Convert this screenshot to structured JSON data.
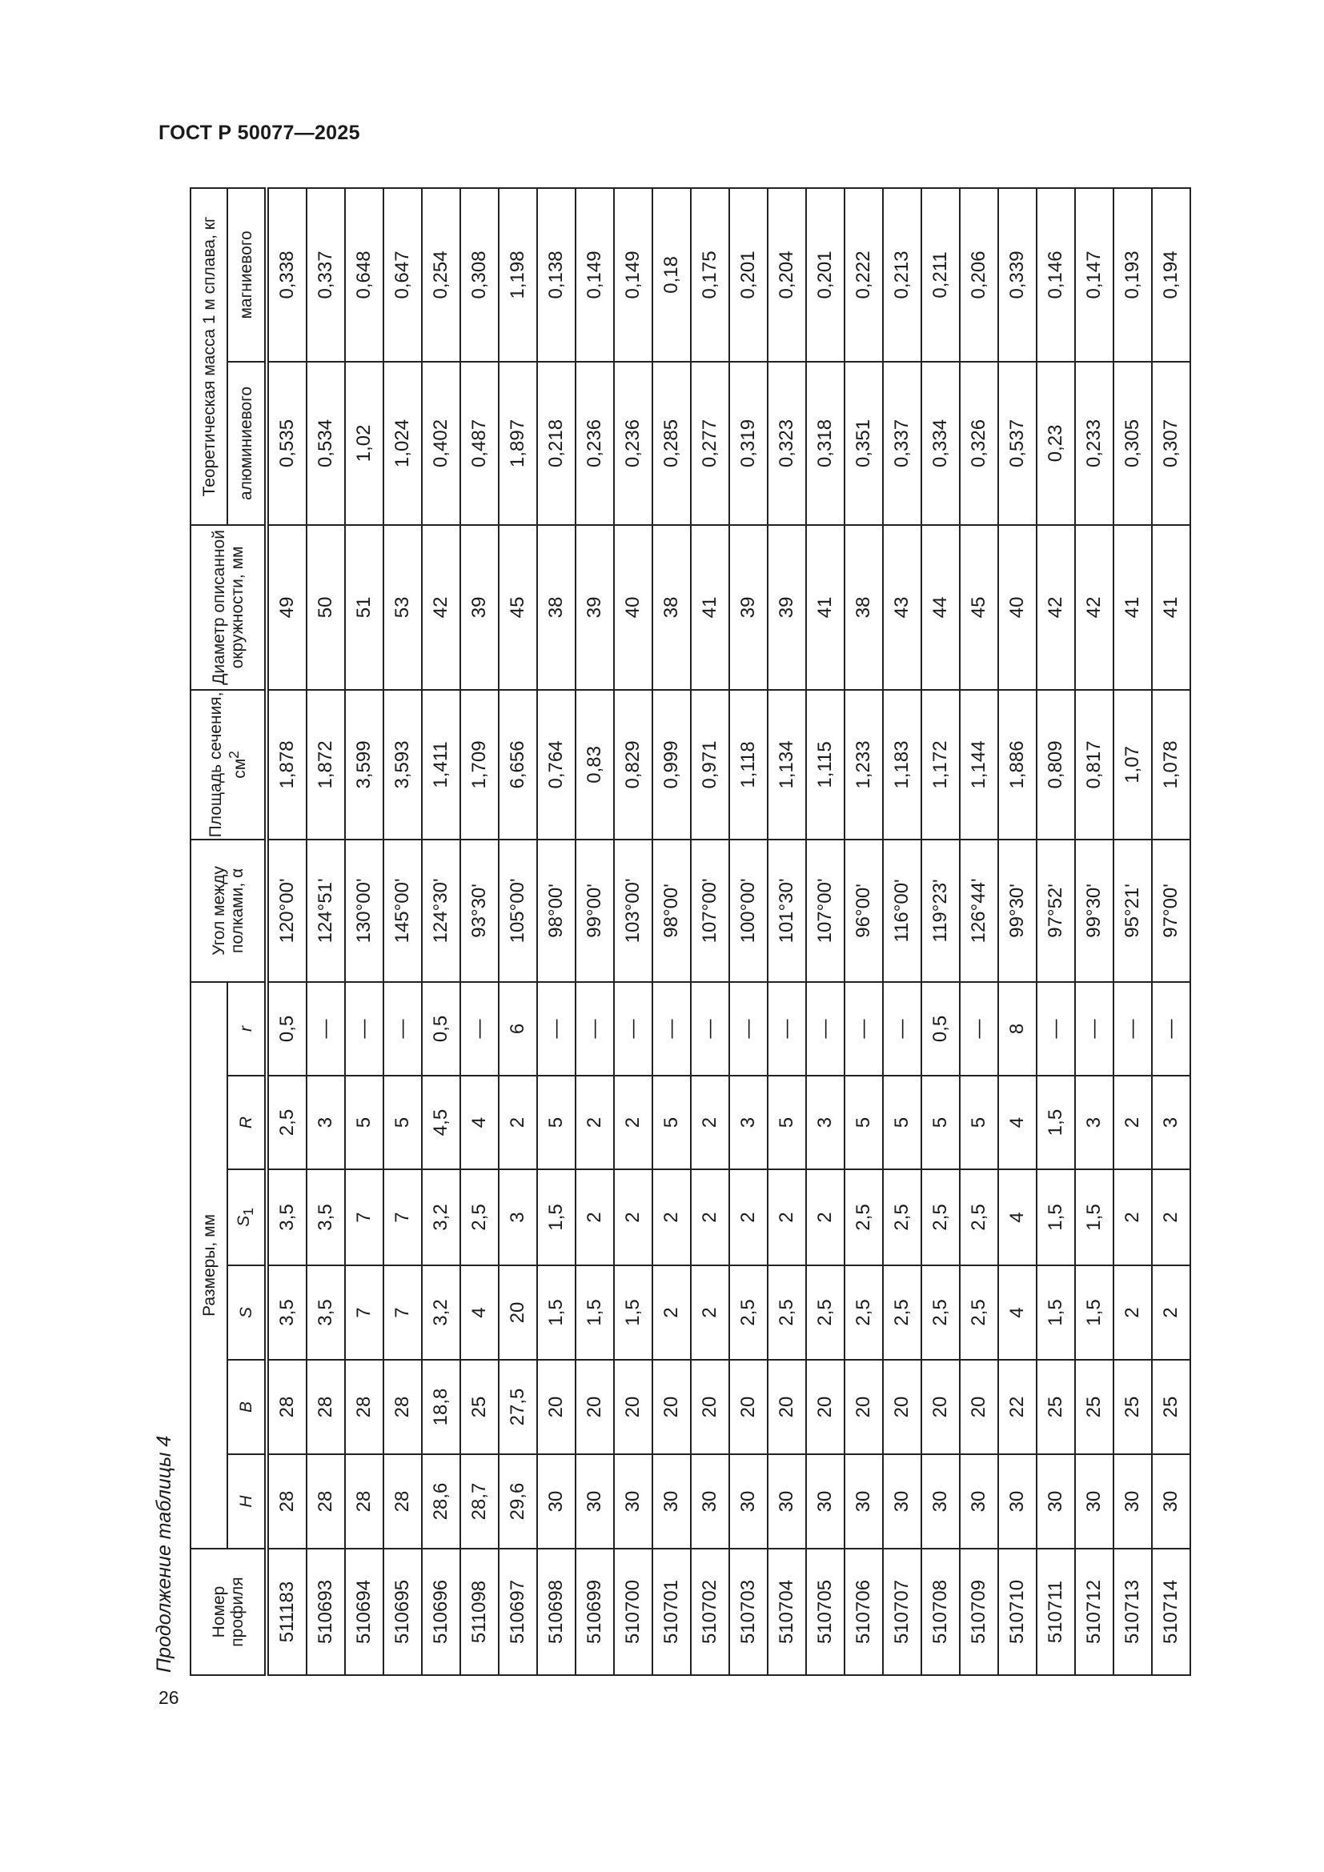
{
  "header": {
    "doc_title": "ГОСТ Р 50077—2025",
    "page_number": "26"
  },
  "table": {
    "caption": "Продолжение таблицы 4",
    "headers": {
      "profile": "Номер профиля",
      "dimensions": "Размеры, мм",
      "H": "H",
      "B": "B",
      "S": "S",
      "S1": "S",
      "S1_sub": "1",
      "R": "R",
      "r": "r",
      "angle": "Угол между полками, α",
      "area": "Площадь сечения, см",
      "area_sup": "2",
      "diameter": "Диаметр описанной окружности, мм",
      "mass": "Теоретическая масса 1 м сплава, кг",
      "aluminum": "алюминиевого",
      "magnesium": "магниевого"
    },
    "rows": [
      [
        "511183",
        "28",
        "28",
        "3,5",
        "3,5",
        "2,5",
        "0,5",
        "120°00'",
        "1,878",
        "49",
        "0,535",
        "0,338"
      ],
      [
        "510693",
        "28",
        "28",
        "3,5",
        "3,5",
        "3",
        "—",
        "124°51'",
        "1,872",
        "50",
        "0,534",
        "0,337"
      ],
      [
        "510694",
        "28",
        "28",
        "7",
        "7",
        "5",
        "—",
        "130°00'",
        "3,599",
        "51",
        "1,02",
        "0,648"
      ],
      [
        "510695",
        "28",
        "28",
        "7",
        "7",
        "5",
        "—",
        "145°00'",
        "3,593",
        "53",
        "1,024",
        "0,647"
      ],
      [
        "510696",
        "28,6",
        "18,8",
        "3,2",
        "3,2",
        "4,5",
        "0,5",
        "124°30'",
        "1,411",
        "42",
        "0,402",
        "0,254"
      ],
      [
        "511098",
        "28,7",
        "25",
        "4",
        "2,5",
        "4",
        "—",
        "93°30'",
        "1,709",
        "39",
        "0,487",
        "0,308"
      ],
      [
        "510697",
        "29,6",
        "27,5",
        "20",
        "3",
        "2",
        "6",
        "105°00'",
        "6,656",
        "45",
        "1,897",
        "1,198"
      ],
      [
        "510698",
        "30",
        "20",
        "1,5",
        "1,5",
        "5",
        "—",
        "98°00'",
        "0,764",
        "38",
        "0,218",
        "0,138"
      ],
      [
        "510699",
        "30",
        "20",
        "1,5",
        "2",
        "2",
        "—",
        "99°00'",
        "0,83",
        "39",
        "0,236",
        "0,149"
      ],
      [
        "510700",
        "30",
        "20",
        "1,5",
        "2",
        "2",
        "—",
        "103°00'",
        "0,829",
        "40",
        "0,236",
        "0,149"
      ],
      [
        "510701",
        "30",
        "20",
        "2",
        "2",
        "5",
        "—",
        "98°00'",
        "0,999",
        "38",
        "0,285",
        "0,18"
      ],
      [
        "510702",
        "30",
        "20",
        "2",
        "2",
        "2",
        "—",
        "107°00'",
        "0,971",
        "41",
        "0,277",
        "0,175"
      ],
      [
        "510703",
        "30",
        "20",
        "2,5",
        "2",
        "3",
        "—",
        "100°00'",
        "1,118",
        "39",
        "0,319",
        "0,201"
      ],
      [
        "510704",
        "30",
        "20",
        "2,5",
        "2",
        "5",
        "—",
        "101°30'",
        "1,134",
        "39",
        "0,323",
        "0,204"
      ],
      [
        "510705",
        "30",
        "20",
        "2,5",
        "2",
        "3",
        "—",
        "107°00'",
        "1,115",
        "41",
        "0,318",
        "0,201"
      ],
      [
        "510706",
        "30",
        "20",
        "2,5",
        "2,5",
        "5",
        "—",
        "96°00'",
        "1,233",
        "38",
        "0,351",
        "0,222"
      ],
      [
        "510707",
        "30",
        "20",
        "2,5",
        "2,5",
        "5",
        "—",
        "116°00'",
        "1,183",
        "43",
        "0,337",
        "0,213"
      ],
      [
        "510708",
        "30",
        "20",
        "2,5",
        "2,5",
        "5",
        "0,5",
        "119°23'",
        "1,172",
        "44",
        "0,334",
        "0,211"
      ],
      [
        "510709",
        "30",
        "20",
        "2,5",
        "2,5",
        "5",
        "—",
        "126°44'",
        "1,144",
        "45",
        "0,326",
        "0,206"
      ],
      [
        "510710",
        "30",
        "22",
        "4",
        "4",
        "4",
        "8",
        "99°30'",
        "1,886",
        "40",
        "0,537",
        "0,339"
      ],
      [
        "510711",
        "30",
        "25",
        "1,5",
        "1,5",
        "1,5",
        "—",
        "97°52'",
        "0,809",
        "42",
        "0,23",
        "0,146"
      ],
      [
        "510712",
        "30",
        "25",
        "1,5",
        "1,5",
        "3",
        "—",
        "99°30'",
        "0,817",
        "42",
        "0,233",
        "0,147"
      ],
      [
        "510713",
        "30",
        "25",
        "2",
        "2",
        "2",
        "—",
        "95°21'",
        "1,07",
        "41",
        "0,305",
        "0,193"
      ],
      [
        "510714",
        "30",
        "25",
        "2",
        "2",
        "3",
        "—",
        "97°00'",
        "1,078",
        "41",
        "0,307",
        "0,194"
      ]
    ]
  }
}
